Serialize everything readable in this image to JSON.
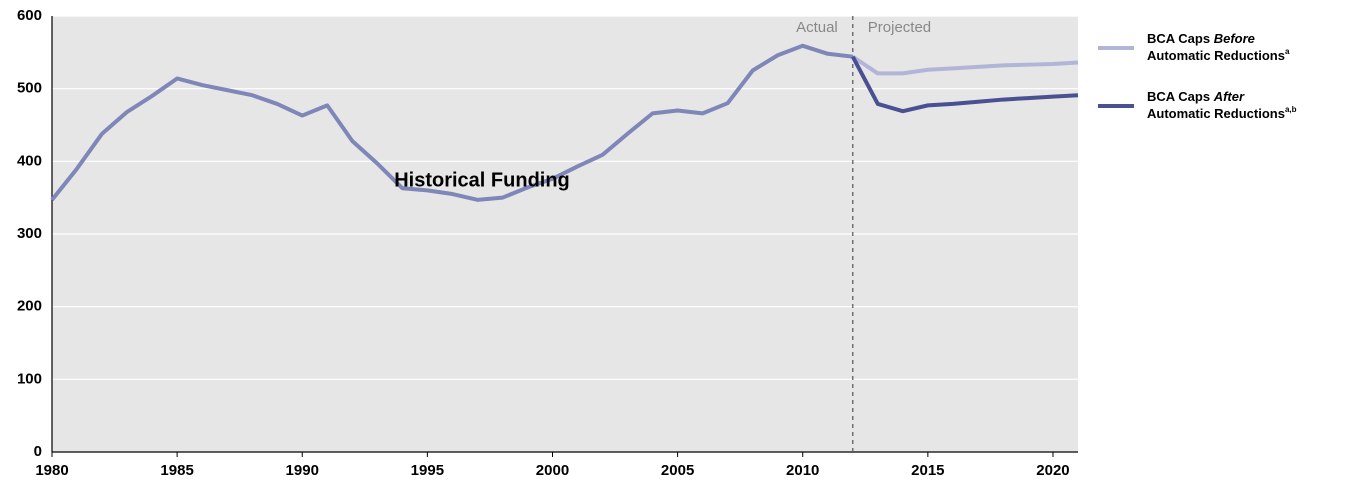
{
  "chart_data": {
    "type": "line",
    "x": [
      1980,
      1981,
      1982,
      1983,
      1984,
      1985,
      1986,
      1987,
      1988,
      1989,
      1990,
      1991,
      1992,
      1993,
      1994,
      1995,
      1996,
      1997,
      1998,
      1999,
      2000,
      2001,
      2002,
      2003,
      2004,
      2005,
      2006,
      2007,
      2008,
      2009,
      2010,
      2011,
      2012,
      2013,
      2014,
      2015,
      2016,
      2017,
      2018,
      2019,
      2020,
      2021
    ],
    "series": [
      {
        "name": "Historical Funding",
        "color": "#7f86b8",
        "values": [
          347,
          390,
          438,
          468,
          490,
          514,
          505,
          498,
          491,
          479,
          463,
          477,
          428,
          397,
          363,
          360,
          355,
          347,
          350,
          364,
          376,
          393,
          409,
          438,
          466,
          470,
          466,
          480,
          525,
          546,
          559,
          548,
          544,
          null,
          null,
          null,
          null,
          null,
          null,
          null,
          null,
          null
        ]
      },
      {
        "name": "BCA Caps Before Automatic Reductions",
        "note": "a",
        "color": "#b2b5d8",
        "values": [
          null,
          null,
          null,
          null,
          null,
          null,
          null,
          null,
          null,
          null,
          null,
          null,
          null,
          null,
          null,
          null,
          null,
          null,
          null,
          null,
          null,
          null,
          null,
          null,
          null,
          null,
          null,
          null,
          null,
          null,
          null,
          null,
          544,
          521,
          521,
          526,
          528,
          530,
          532,
          533,
          534,
          536
        ]
      },
      {
        "name": "BCA Caps After Automatic Reductions",
        "note": "a,b",
        "color": "#4a5192",
        "values": [
          null,
          null,
          null,
          null,
          null,
          null,
          null,
          null,
          null,
          null,
          null,
          null,
          null,
          null,
          null,
          null,
          null,
          null,
          null,
          null,
          null,
          null,
          null,
          null,
          null,
          null,
          null,
          null,
          null,
          null,
          null,
          null,
          544,
          479,
          469,
          477,
          479,
          482,
          485,
          487,
          489,
          491
        ]
      }
    ],
    "annotations": {
      "actual": "Actual",
      "projected": "Projected",
      "divider_x": 2012
    },
    "xlim": [
      1980,
      2021
    ],
    "xticks": [
      1980,
      1985,
      1990,
      1995,
      2000,
      2005,
      2010,
      2015,
      2020
    ],
    "ylim": [
      0,
      600
    ],
    "yticks": [
      0,
      100,
      200,
      300,
      400,
      500,
      600
    ],
    "grid": true
  }
}
